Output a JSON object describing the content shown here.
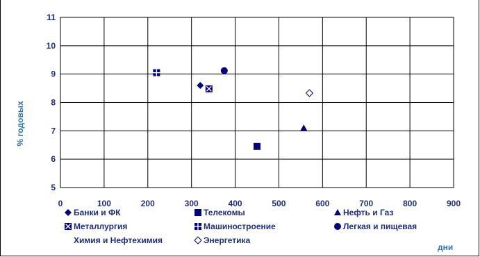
{
  "chart_data": {
    "type": "scatter",
    "title": "",
    "xlabel": "дни",
    "ylabel": "% годовых",
    "xlim": [
      0,
      900
    ],
    "ylim": [
      5,
      11
    ],
    "x_ticks": [
      0,
      100,
      200,
      300,
      400,
      500,
      600,
      700,
      800,
      900
    ],
    "y_ticks": [
      5,
      6,
      7,
      8,
      9,
      10,
      11
    ],
    "grid": true,
    "legend_position": "bottom",
    "color": "#00007f",
    "series": [
      {
        "name": "Банки и ФК",
        "marker": "diamond",
        "points": [
          {
            "x": 320,
            "y": 8.6
          }
        ]
      },
      {
        "name": "Телекомы",
        "marker": "square",
        "points": [
          {
            "x": 450,
            "y": 6.45
          }
        ]
      },
      {
        "name": "Нефть и Газ",
        "marker": "triangle",
        "points": [
          {
            "x": 557,
            "y": 7.1
          }
        ]
      },
      {
        "name": "Металлургия",
        "marker": "square-x",
        "points": [
          {
            "x": 340,
            "y": 8.48
          }
        ]
      },
      {
        "name": "Машиностроение",
        "marker": "square-plus",
        "points": [
          {
            "x": 220,
            "y": 9.05
          }
        ]
      },
      {
        "name": "Легкая и пищевая",
        "marker": "circle",
        "points": [
          {
            "x": 375,
            "y": 9.12
          }
        ]
      },
      {
        "name": "Химия и Нефтехимия",
        "marker": "none",
        "points": []
      },
      {
        "name": "Энергетика",
        "marker": "diamond-open",
        "points": [
          {
            "x": 570,
            "y": 8.33
          }
        ]
      }
    ]
  }
}
